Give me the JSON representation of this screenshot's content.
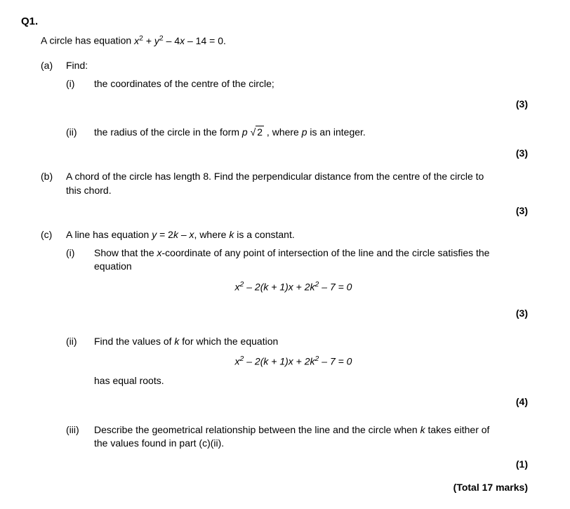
{
  "question_number": "Q1.",
  "intro_prefix": "A circle has equation ",
  "intro_eq_html": "<span class='ital'>x</span><sup>2</sup> + <span class='ital'>y</span><sup>2</sup> – 4<span class='ital'>x</span> – 14 = 0.",
  "a": {
    "label": "(a)",
    "text": "Find:",
    "i": {
      "label": "(i)",
      "text": "the coordinates of the centre of the circle;",
      "marks": "(3)"
    },
    "ii": {
      "label": "(ii)",
      "prefix": "the radius of the circle in the form ",
      "form_html": "<span class='ital'>p</span> <span class='sqrt'><span class='sqrt-arg'>2</span></span>",
      "suffix_html": " , where <span class='ital'>p</span> is an integer.",
      "marks": "(3)"
    }
  },
  "b": {
    "label": "(b)",
    "text": "A chord of the circle has length 8. Find the perpendicular distance from the centre of the circle to this chord.",
    "marks": "(3)"
  },
  "c": {
    "label": "(c)",
    "intro_html": "A line has equation <span class='ital'>y</span> = 2<span class='ital'>k</span> – <span class='ital'>x</span>, where <span class='ital'>k</span> is a constant.",
    "i": {
      "label": "(i)",
      "text_html": "Show that the <span class='ital'>x</span>-coordinate of any point of intersection of the line and the circle satisfies the equation",
      "eq_html": "<span class='ital'>x</span><sup>2</sup> – 2(<span class='ital'>k</span> + 1)<span class='ital'>x</span> + 2<span class='ital'>k</span><sup>2</sup> – 7 = 0",
      "marks": "(3)"
    },
    "ii": {
      "label": "(ii)",
      "text_html": "Find the values of <span class='ital'>k</span> for which the equation",
      "eq_html": "<span class='ital'>x</span><sup>2</sup> – 2(<span class='ital'>k</span> + 1)<span class='ital'>x</span> + 2<span class='ital'>k</span><sup>2</sup> – 7 = 0",
      "after": "has equal roots.",
      "marks": "(4)"
    },
    "iii": {
      "label": "(iii)",
      "text_html": "Describe the geometrical relationship between the line and the circle when <span class='ital'>k</span> takes either of the values found in part (c)(ii).",
      "marks": "(1)"
    }
  },
  "total": "(Total 17 marks)"
}
